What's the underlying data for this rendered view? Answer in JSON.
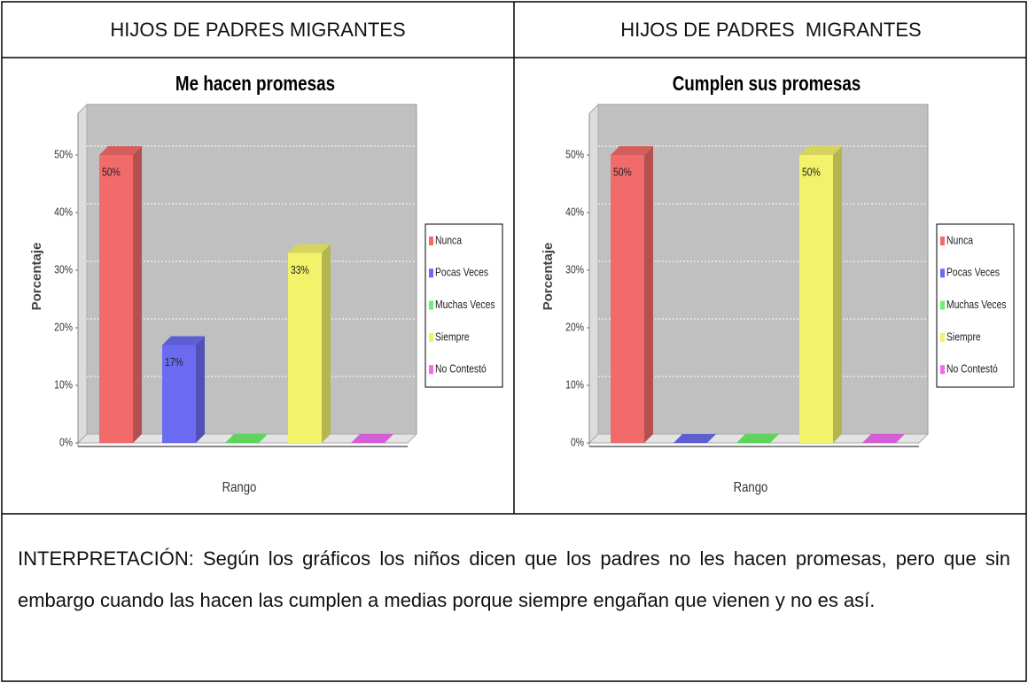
{
  "table": {
    "headers": [
      "HIJOS DE PADRES MIGRANTES",
      "HIJOS DE PADRES  MIGRANTES"
    ]
  },
  "chart_data": [
    {
      "type": "bar3d",
      "title": "Me hacen promesas",
      "x_label": "Rango",
      "y_label": "Porcentaje",
      "categories": [
        "Nunca",
        "Pocas Veces",
        "Muchas Veces",
        "Siempre",
        "No Contestó"
      ],
      "values": [
        50,
        17,
        0,
        33,
        0
      ],
      "value_labels": [
        "50%",
        "17%",
        null,
        "33%",
        null
      ],
      "colors": [
        "#f26b6b",
        "#6b6bf2",
        "#6bf26b",
        "#f2f26b",
        "#f26bf2"
      ],
      "ylim": [
        0,
        56
      ],
      "yticks": [
        {
          "value": 0,
          "label": "0%"
        },
        {
          "value": 10,
          "label": "10%"
        },
        {
          "value": 20,
          "label": "20%"
        },
        {
          "value": 30,
          "label": "30%"
        },
        {
          "value": 40,
          "label": "40%"
        },
        {
          "value": 50,
          "label": "50%"
        }
      ],
      "grid": true,
      "legend": "right"
    },
    {
      "type": "bar3d",
      "title": "Cumplen sus promesas",
      "x_label": "Rango",
      "y_label": "Porcentaje",
      "categories": [
        "Nunca",
        "Pocas Veces",
        "Muchas Veces",
        "Siempre",
        "No Contestó"
      ],
      "values": [
        50,
        0,
        0,
        50,
        0
      ],
      "value_labels": [
        "50%",
        null,
        null,
        "50%",
        null
      ],
      "colors": [
        "#f26b6b",
        "#6b6bf2",
        "#6bf26b",
        "#f2f26b",
        "#f26bf2"
      ],
      "ylim": [
        0,
        56
      ],
      "yticks": [
        {
          "value": 0,
          "label": "0%"
        },
        {
          "value": 10,
          "label": "10%"
        },
        {
          "value": 20,
          "label": "20%"
        },
        {
          "value": 30,
          "label": "30%"
        },
        {
          "value": 40,
          "label": "40%"
        },
        {
          "value": 50,
          "label": "50%"
        }
      ],
      "grid": true,
      "legend": "right"
    }
  ],
  "interpretation": "INTERPRETACIÓN: Según los gráficos los niños dicen que los padres no les hacen promesas, pero que sin embargo cuando las hacen las cumplen a medias porque siempre engañan que vienen y no es así."
}
